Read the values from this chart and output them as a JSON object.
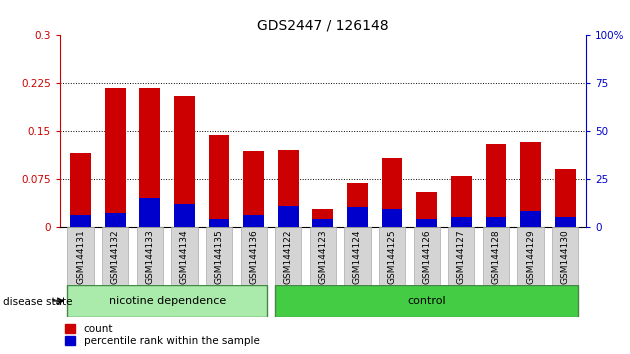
{
  "title": "GDS2447 / 126148",
  "samples": [
    "GSM144131",
    "GSM144132",
    "GSM144133",
    "GSM144134",
    "GSM144135",
    "GSM144136",
    "GSM144122",
    "GSM144123",
    "GSM144124",
    "GSM144125",
    "GSM144126",
    "GSM144127",
    "GSM144128",
    "GSM144129",
    "GSM144130"
  ],
  "count_values": [
    0.115,
    0.218,
    0.218,
    0.205,
    0.143,
    0.118,
    0.12,
    0.028,
    0.068,
    0.108,
    0.055,
    0.08,
    0.13,
    0.133,
    0.09
  ],
  "percentile_values_pct": [
    6,
    7,
    15,
    12,
    4,
    6,
    11,
    4,
    10,
    9,
    4,
    5,
    5,
    8,
    5
  ],
  "bar_color": "#cc0000",
  "percentile_color": "#0000cc",
  "ylim_left": [
    0,
    0.3
  ],
  "ylim_right": [
    0,
    100
  ],
  "yticks_left": [
    0,
    0.075,
    0.15,
    0.225,
    0.3
  ],
  "ytick_labels_left": [
    "0",
    "0.075",
    "0.15",
    "0.225",
    "0.3"
  ],
  "yticks_right": [
    0,
    25,
    50,
    75,
    100
  ],
  "ytick_labels_right": [
    "0",
    "25",
    "50",
    "75",
    "100%"
  ],
  "grid_dotted_at": [
    0.075,
    0.15,
    0.225
  ],
  "groups": [
    {
      "label": "nicotine dependence",
      "start": 0,
      "end": 6
    },
    {
      "label": "control",
      "start": 6,
      "end": 15
    }
  ],
  "group_color_nicotine": "#aaeaaa",
  "group_color_control": "#44cc44",
  "disease_state_label": "disease state",
  "legend_count_label": "count",
  "legend_percentile_label": "percentile rank within the sample",
  "bar_width": 0.6,
  "tick_label_color_left": "#cc0000",
  "tick_label_color_right": "#0000cc",
  "title_fontsize": 10,
  "tick_fontsize": 7.5,
  "xtick_fontsize": 6.5,
  "legend_fontsize": 7.5,
  "group_fontsize": 8
}
